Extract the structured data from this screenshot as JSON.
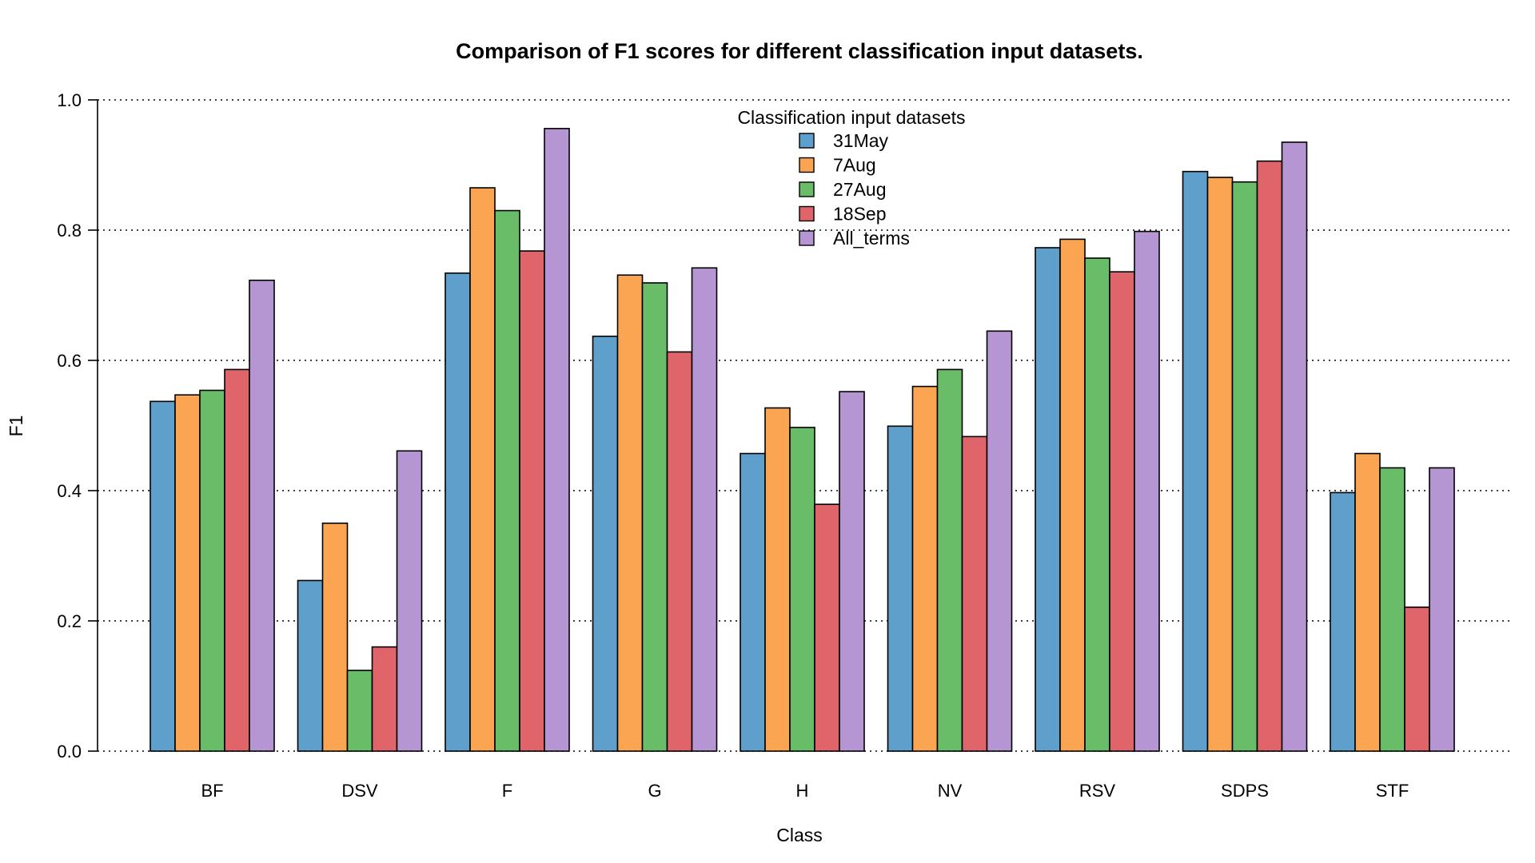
{
  "chart_data": {
    "type": "bar",
    "title": "Comparison of F1 scores for different classification input datasets.",
    "xlabel": "Class",
    "ylabel": "F1",
    "ylim": [
      0,
      1.0
    ],
    "yticks": [
      "0.0",
      "0.2",
      "0.4",
      "0.6",
      "0.8",
      "1.0"
    ],
    "grid": "horizontal dotted",
    "legend": {
      "title": "Classification input datasets",
      "position": "top-center"
    },
    "categories": [
      "BF",
      "DSV",
      "F",
      "G",
      "H",
      "NV",
      "RSV",
      "SDPS",
      "STF"
    ],
    "series": [
      {
        "name": "31May",
        "color": "#5F9FCC",
        "values": [
          0.537,
          0.262,
          0.734,
          0.637,
          0.457,
          0.499,
          0.773,
          0.89,
          0.397
        ]
      },
      {
        "name": "7Aug",
        "color": "#FBA552",
        "values": [
          0.547,
          0.35,
          0.865,
          0.731,
          0.527,
          0.56,
          0.786,
          0.881,
          0.457
        ]
      },
      {
        "name": "27Aug",
        "color": "#6ABD68",
        "values": [
          0.554,
          0.124,
          0.83,
          0.719,
          0.497,
          0.586,
          0.757,
          0.874,
          0.435
        ]
      },
      {
        "name": "18Sep",
        "color": "#E0656A",
        "values": [
          0.586,
          0.16,
          0.768,
          0.613,
          0.379,
          0.483,
          0.736,
          0.906,
          0.221
        ]
      },
      {
        "name": "All_terms",
        "color": "#B595D2",
        "values": [
          0.723,
          0.461,
          0.956,
          0.742,
          0.552,
          0.645,
          0.798,
          0.935,
          0.435
        ]
      }
    ]
  }
}
